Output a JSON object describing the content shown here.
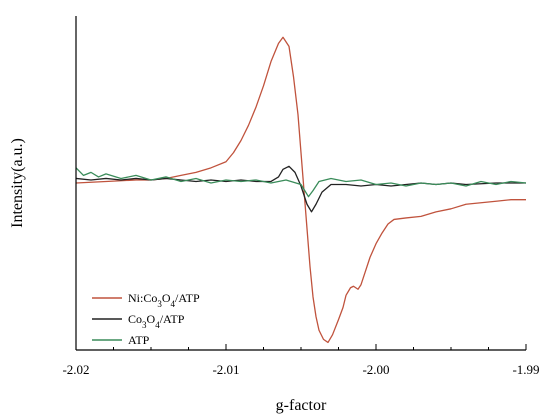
{
  "chart_data": {
    "type": "line",
    "xlabel": "g-factor",
    "ylabel": "Intensity(a.u.)",
    "xlim": [
      -2.02,
      -1.99
    ],
    "ylim": [
      -1.1,
      1.1
    ],
    "x_ticks": [
      -2.02,
      -2.01,
      -2.0,
      -1.99
    ],
    "x_tick_labels": [
      "-2.02",
      "-2.01",
      "-2.00",
      "-1.99"
    ],
    "x_minor_step": 0.0025,
    "y_ticks_shown": false,
    "legend": {
      "placement": "bottom-left",
      "entries": [
        {
          "label": "Ni:Co3O4/ATP",
          "base": "Ni:Co",
          "sub": "3",
          "mid": "O",
          "sub2": "4",
          "tail": "/ATP"
        },
        {
          "label": "Co3O4/ATP",
          "base": "Co",
          "sub": "3",
          "mid": "O",
          "sub2": "4",
          "tail": "/ATP"
        },
        {
          "label": "ATP",
          "base": "ATP",
          "sub": "",
          "mid": "",
          "sub2": "",
          "tail": ""
        }
      ]
    },
    "series": [
      {
        "name": "Ni:Co3O4/ATP",
        "color": "#c0533d",
        "points": [
          [
            -2.02,
            0.0
          ],
          [
            -2.018,
            0.01
          ],
          [
            -2.016,
            0.02
          ],
          [
            -2.015,
            0.02
          ],
          [
            -2.014,
            0.03
          ],
          [
            -2.013,
            0.05
          ],
          [
            -2.012,
            0.07
          ],
          [
            -2.011,
            0.1
          ],
          [
            -2.01,
            0.14
          ],
          [
            -2.0095,
            0.2
          ],
          [
            -2.009,
            0.28
          ],
          [
            -2.0085,
            0.38
          ],
          [
            -2.008,
            0.5
          ],
          [
            -2.0075,
            0.64
          ],
          [
            -2.007,
            0.8
          ],
          [
            -2.0065,
            0.92
          ],
          [
            -2.0062,
            0.96
          ],
          [
            -2.0058,
            0.9
          ],
          [
            -2.0055,
            0.7
          ],
          [
            -2.0052,
            0.45
          ],
          [
            -2.005,
            0.2
          ],
          [
            -2.0048,
            -0.05
          ],
          [
            -2.0046,
            -0.3
          ],
          [
            -2.0044,
            -0.55
          ],
          [
            -2.0042,
            -0.75
          ],
          [
            -2.004,
            -0.88
          ],
          [
            -2.0038,
            -0.97
          ],
          [
            -2.0035,
            -1.03
          ],
          [
            -2.0032,
            -1.05
          ],
          [
            -2.0029,
            -1.0
          ],
          [
            -2.0025,
            -0.9
          ],
          [
            -2.0022,
            -0.82
          ],
          [
            -2.002,
            -0.74
          ],
          [
            -2.0017,
            -0.69
          ],
          [
            -2.0015,
            -0.68
          ],
          [
            -2.0012,
            -0.7
          ],
          [
            -2.001,
            -0.67
          ],
          [
            -2.0007,
            -0.58
          ],
          [
            -2.0004,
            -0.49
          ],
          [
            -2.0,
            -0.4
          ],
          [
            -1.9996,
            -0.33
          ],
          [
            -1.9992,
            -0.27
          ],
          [
            -1.9988,
            -0.24
          ],
          [
            -1.998,
            -0.23
          ],
          [
            -1.997,
            -0.22
          ],
          [
            -1.996,
            -0.19
          ],
          [
            -1.995,
            -0.17
          ],
          [
            -1.994,
            -0.14
          ],
          [
            -1.993,
            -0.13
          ],
          [
            -1.992,
            -0.12
          ],
          [
            -1.991,
            -0.11
          ],
          [
            -1.99,
            -0.11
          ]
        ]
      },
      {
        "name": "Co3O4/ATP",
        "color": "#222222",
        "points": [
          [
            -2.02,
            0.03
          ],
          [
            -2.019,
            0.02
          ],
          [
            -2.018,
            0.03
          ],
          [
            -2.017,
            0.02
          ],
          [
            -2.016,
            0.03
          ],
          [
            -2.015,
            0.02
          ],
          [
            -2.014,
            0.03
          ],
          [
            -2.013,
            0.02
          ],
          [
            -2.012,
            0.01
          ],
          [
            -2.011,
            0.02
          ],
          [
            -2.01,
            0.01
          ],
          [
            -2.009,
            0.02
          ],
          [
            -2.008,
            0.01
          ],
          [
            -2.007,
            0.01
          ],
          [
            -2.0065,
            0.04
          ],
          [
            -2.0062,
            0.09
          ],
          [
            -2.0058,
            0.11
          ],
          [
            -2.0054,
            0.07
          ],
          [
            -2.005,
            -0.02
          ],
          [
            -2.0046,
            -0.14
          ],
          [
            -2.0043,
            -0.19
          ],
          [
            -2.004,
            -0.14
          ],
          [
            -2.0036,
            -0.06
          ],
          [
            -2.003,
            -0.01
          ],
          [
            -2.002,
            -0.01
          ],
          [
            -2.001,
            -0.02
          ],
          [
            -2.0,
            -0.01
          ],
          [
            -1.999,
            -0.02
          ],
          [
            -1.998,
            -0.01
          ],
          [
            -1.997,
            0.0
          ],
          [
            -1.996,
            -0.01
          ],
          [
            -1.995,
            0.0
          ],
          [
            -1.994,
            -0.01
          ],
          [
            -1.992,
            0.0
          ],
          [
            -1.99,
            0.0
          ]
        ]
      },
      {
        "name": "ATP",
        "color": "#3a8c5a",
        "points": [
          [
            -2.02,
            0.1
          ],
          [
            -2.0195,
            0.05
          ],
          [
            -2.019,
            0.07
          ],
          [
            -2.0185,
            0.04
          ],
          [
            -2.018,
            0.06
          ],
          [
            -2.017,
            0.03
          ],
          [
            -2.016,
            0.05
          ],
          [
            -2.015,
            0.02
          ],
          [
            -2.014,
            0.04
          ],
          [
            -2.013,
            0.01
          ],
          [
            -2.012,
            0.03
          ],
          [
            -2.011,
            0.0
          ],
          [
            -2.01,
            0.02
          ],
          [
            -2.009,
            0.01
          ],
          [
            -2.008,
            0.02
          ],
          [
            -2.007,
            0.0
          ],
          [
            -2.006,
            0.02
          ],
          [
            -2.005,
            -0.01
          ],
          [
            -2.0045,
            -0.09
          ],
          [
            -2.0042,
            -0.05
          ],
          [
            -2.0038,
            0.01
          ],
          [
            -2.003,
            0.03
          ],
          [
            -2.002,
            0.01
          ],
          [
            -2.001,
            0.02
          ],
          [
            -2.0,
            -0.01
          ],
          [
            -1.999,
            0.0
          ],
          [
            -1.998,
            -0.02
          ],
          [
            -1.997,
            0.0
          ],
          [
            -1.996,
            -0.01
          ],
          [
            -1.995,
            0.0
          ],
          [
            -1.994,
            -0.02
          ],
          [
            -1.993,
            0.01
          ],
          [
            -1.992,
            -0.01
          ],
          [
            -1.991,
            0.01
          ],
          [
            -1.99,
            0.0
          ]
        ]
      }
    ]
  }
}
